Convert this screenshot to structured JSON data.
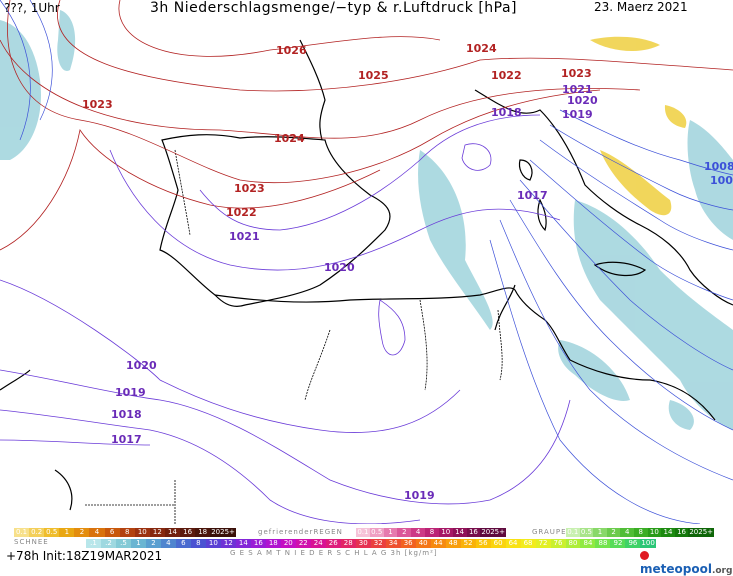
{
  "header": {
    "left": "???, 1Uhr",
    "title": "3h Niederschlagsmenge/−typ & r.Luftdruck [hPa]",
    "date": "23. Maerz 2021"
  },
  "isobars": [
    {
      "label": "1026",
      "color": "#b22222"
    },
    {
      "label": "1025",
      "color": "#b22222"
    },
    {
      "label": "1024",
      "color": "#b22222"
    },
    {
      "label": "1023",
      "color": "#b22222"
    },
    {
      "label": "1022",
      "color": "#b22222"
    },
    {
      "label": "1021",
      "color": "#6a2bb8"
    },
    {
      "label": "1020",
      "color": "#6a2bb8"
    },
    {
      "label": "1019",
      "color": "#6a2bb8"
    },
    {
      "label": "1018",
      "color": "#6a2bb8"
    },
    {
      "label": "1017",
      "color": "#6a2bb8"
    },
    {
      "label": "1008",
      "color": "#3c50d8"
    },
    {
      "label": "100",
      "color": "#3c50d8"
    }
  ],
  "legend": {
    "snow_label": "SCHNEE",
    "freezing_label": "gefrierenderREGEN",
    "graupel_label": "GRAUPEL",
    "total_label": "G E S A M T N I E D E R S C H L A G  3h  [kg/m²]",
    "snow_scale": [
      "0.1",
      "0.2",
      "0.5",
      "1",
      "2",
      "4",
      "6",
      "8",
      "10",
      "12",
      "14",
      "16",
      "18",
      "2025+"
    ],
    "freezing_scale": [
      "0.1",
      "0.5",
      "1",
      "2",
      "4",
      "8",
      "10",
      "14",
      "16",
      "2025+"
    ],
    "graupel_scale": [
      "0.1",
      "0.5",
      "1",
      "2",
      "4",
      "8",
      "10",
      "14",
      "16",
      "2025+"
    ],
    "total_scale": [
      ".1",
      ".2",
      ".5",
      "1",
      "2",
      "4",
      "6",
      "8",
      "10",
      "12",
      "14",
      "16",
      "18",
      "20",
      "22",
      "24",
      "26",
      "28",
      "30",
      "32",
      "34",
      "36",
      "40",
      "44",
      "48",
      "52",
      "56",
      "60",
      "64",
      "68",
      "72",
      "76",
      "80",
      "84",
      "88",
      "92",
      "96",
      "100"
    ]
  },
  "footer": {
    "init": "+78h  Init:18Z19MAR2021",
    "brand": "meteopool",
    "brand_suffix": ".org"
  }
}
